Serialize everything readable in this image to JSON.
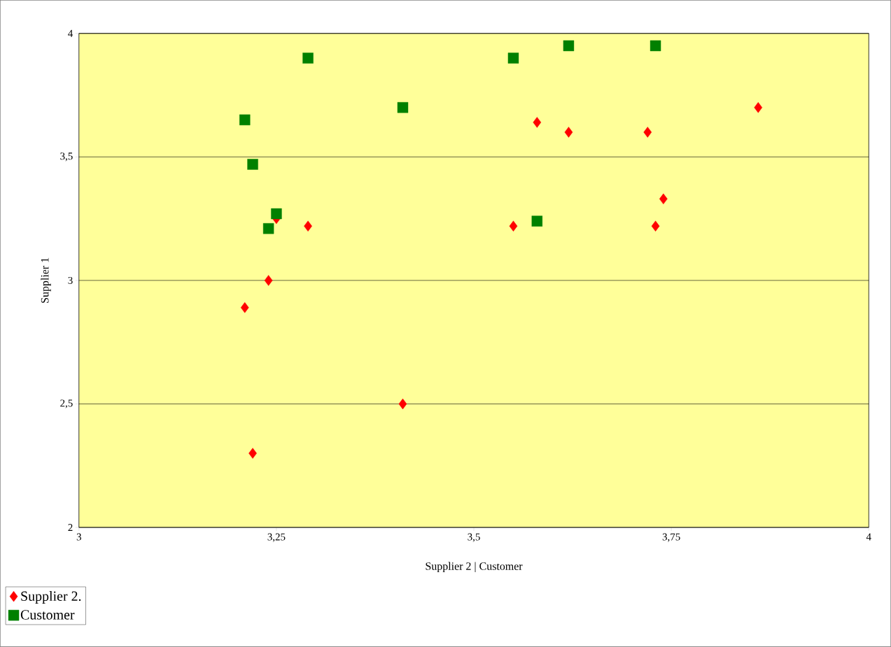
{
  "chart_data": {
    "type": "scatter",
    "xlabel": "Supplier 2 | Customer",
    "ylabel": "Supplier 1",
    "xlim": [
      3,
      4
    ],
    "ylim": [
      2,
      4
    ],
    "xticks": [
      3,
      {
        "value": 3.25,
        "label": "3,25"
      },
      {
        "value": 3.5,
        "label": "3,5"
      },
      {
        "value": 3.75,
        "label": "3,75"
      },
      4
    ],
    "yticks": [
      2,
      {
        "value": 2.5,
        "label": "2,5"
      },
      3,
      {
        "value": 3.5,
        "label": "3,5"
      },
      4
    ],
    "grid": "y",
    "legend": "bottom left",
    "series": [
      {
        "name": "Supplier 2.",
        "color": "#ff0000",
        "marker": "diamond",
        "x": [
          3.21,
          3.24,
          3.25,
          3.29,
          3.22,
          3.41,
          3.55,
          3.58,
          3.62,
          3.72,
          3.74,
          3.73,
          3.86
        ],
        "values": [
          2.89,
          3.0,
          3.25,
          3.22,
          2.3,
          2.5,
          3.22,
          3.64,
          3.6,
          3.6,
          3.33,
          3.22,
          3.7
        ]
      },
      {
        "name": "Customer",
        "color": "#008000",
        "marker": "square",
        "x": [
          3.21,
          3.22,
          3.24,
          3.25,
          3.29,
          3.41,
          3.55,
          3.58,
          3.62,
          3.73
        ],
        "values": [
          3.65,
          3.47,
          3.21,
          3.27,
          3.9,
          3.7,
          3.9,
          3.24,
          3.95,
          3.95
        ]
      }
    ]
  }
}
